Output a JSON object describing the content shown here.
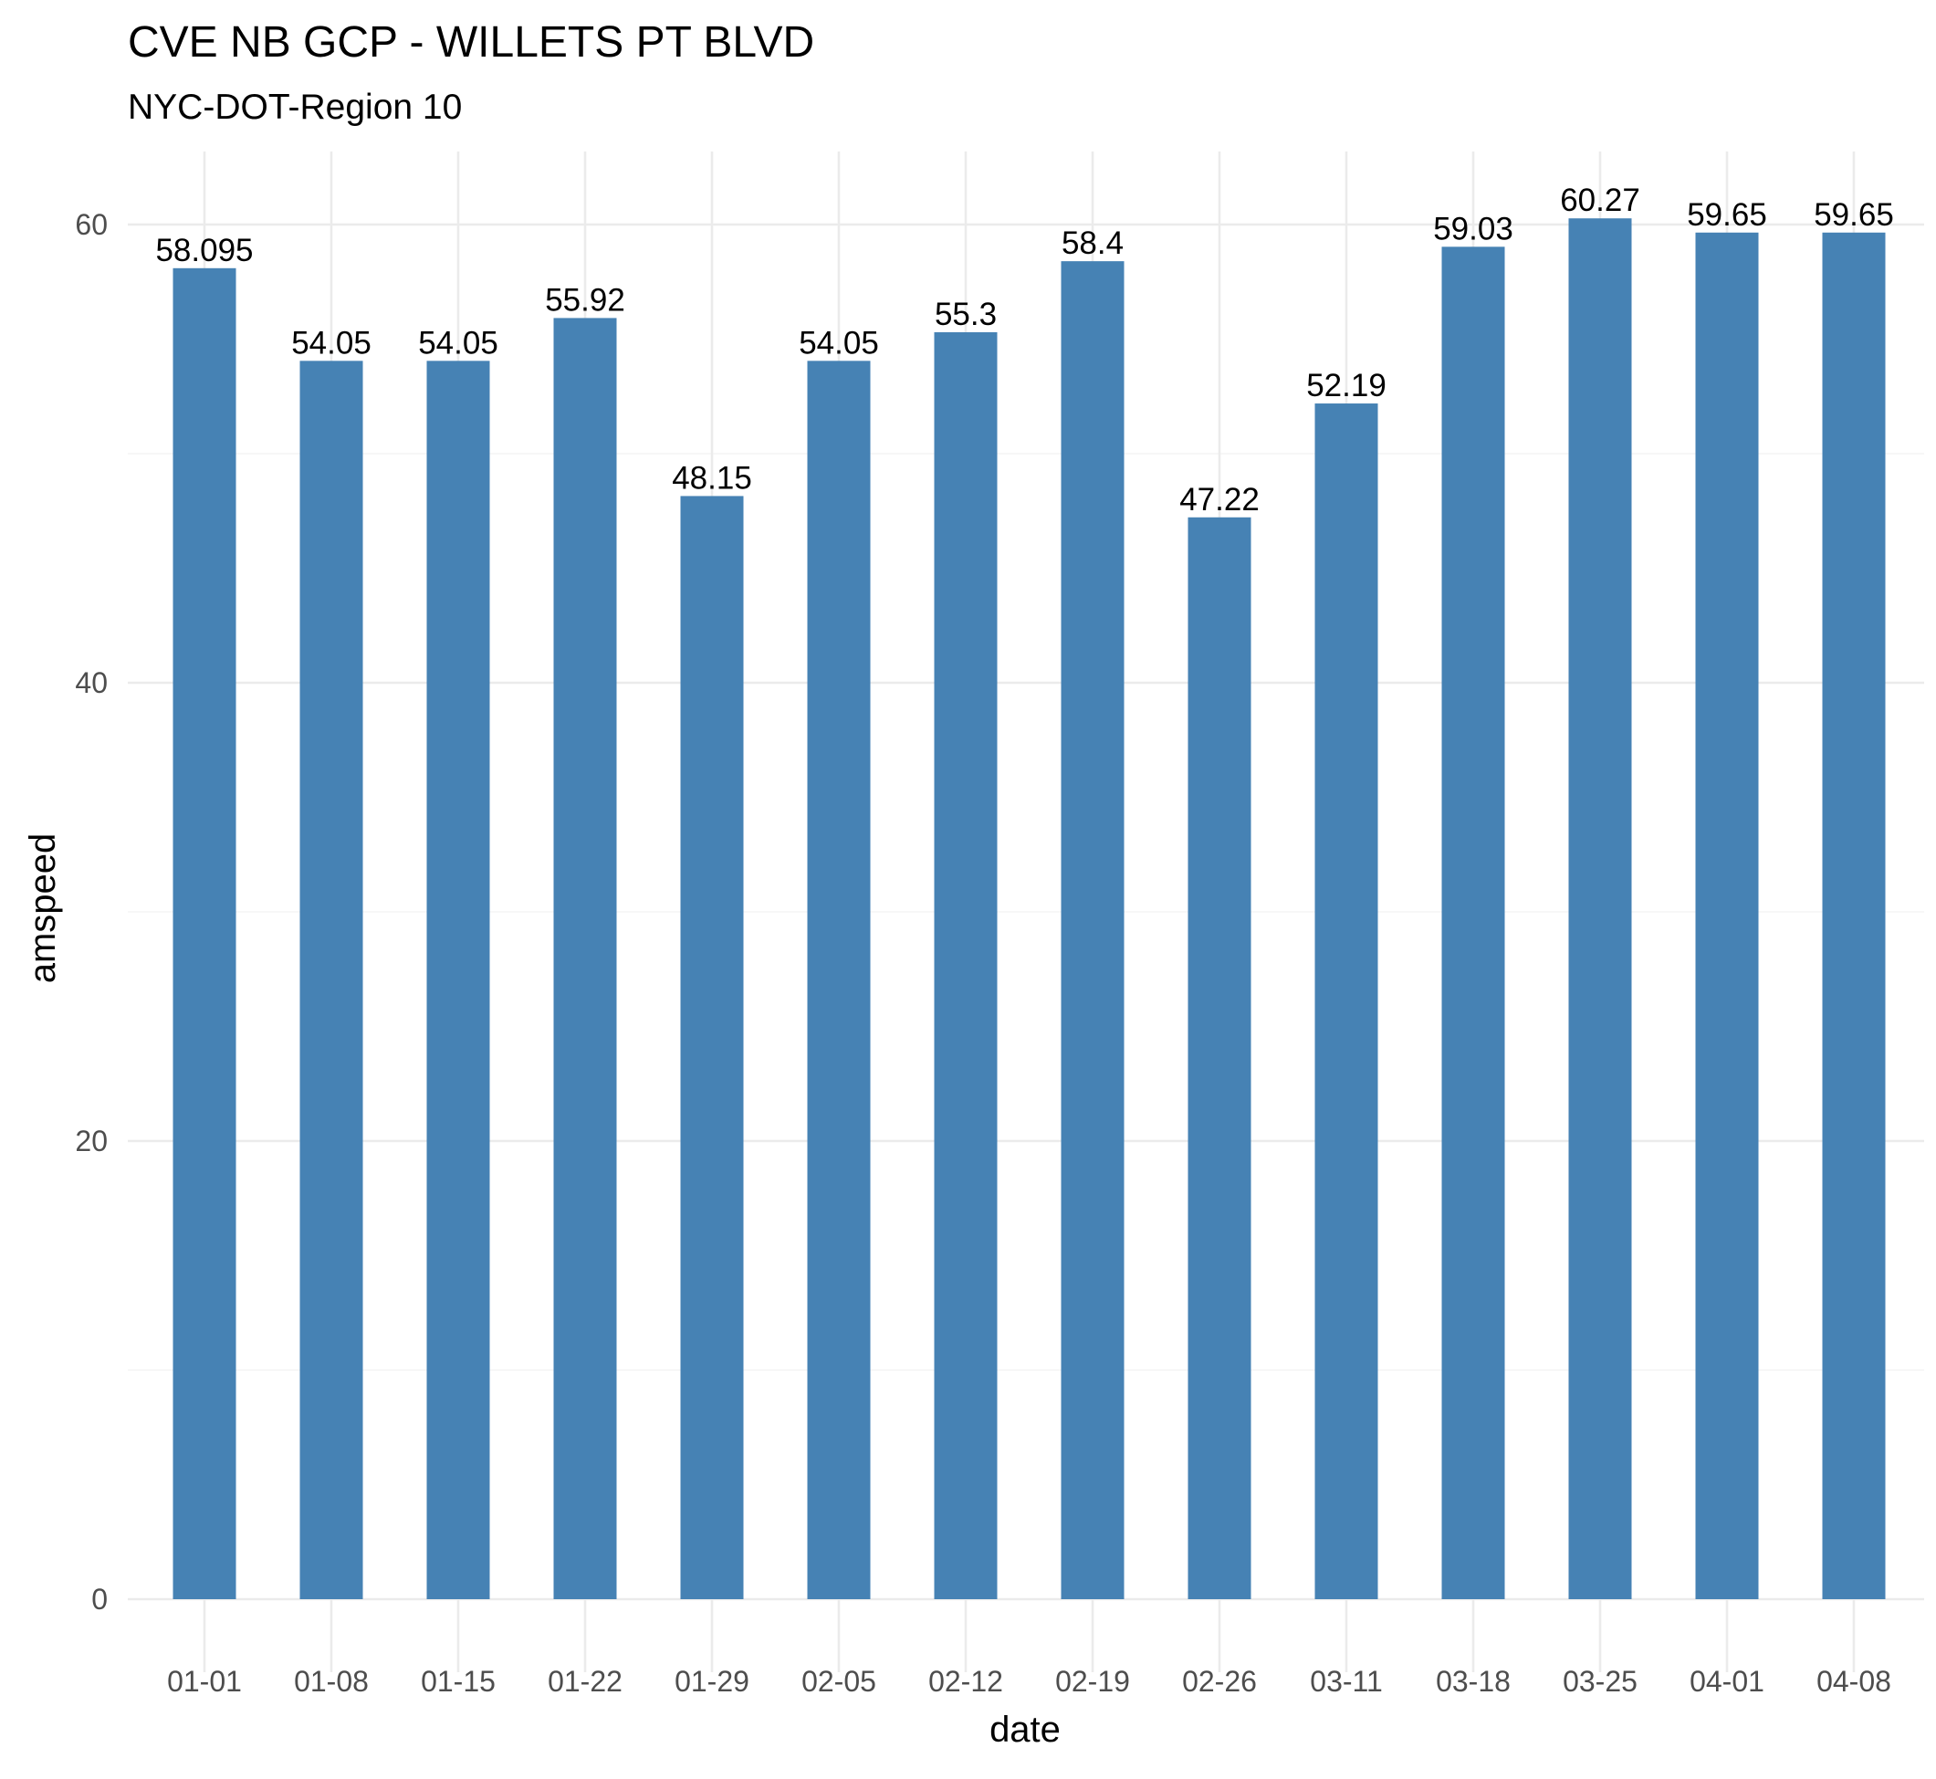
{
  "chart_data": {
    "type": "bar",
    "title": "CVE NB GCP - WILLETS PT BLVD",
    "subtitle": "NYC-DOT-Region 10",
    "xlabel": "date",
    "ylabel": "amspeed",
    "categories": [
      "01-01",
      "01-08",
      "01-15",
      "01-22",
      "01-29",
      "02-05",
      "02-12",
      "02-19",
      "02-26",
      "03-11",
      "03-18",
      "03-25",
      "04-01",
      "04-08"
    ],
    "values": [
      58.095,
      54.05,
      54.05,
      55.92,
      48.15,
      54.05,
      55.3,
      58.4,
      47.22,
      52.19,
      59.03,
      60.27,
      59.65,
      59.65
    ],
    "data_labels": [
      "58.095",
      "54.05",
      "54.05",
      "55.92",
      "48.15",
      "54.05",
      "55.3",
      "58.4",
      "47.22",
      "52.19",
      "59.03",
      "60.27",
      "59.65",
      "59.65"
    ],
    "ylim": [
      0,
      60
    ],
    "yticks": [
      0,
      20,
      40,
      60
    ],
    "yticks_minor": [
      10,
      30,
      50
    ],
    "grid": true,
    "legend": "none",
    "bar_color": "#4682b4"
  }
}
